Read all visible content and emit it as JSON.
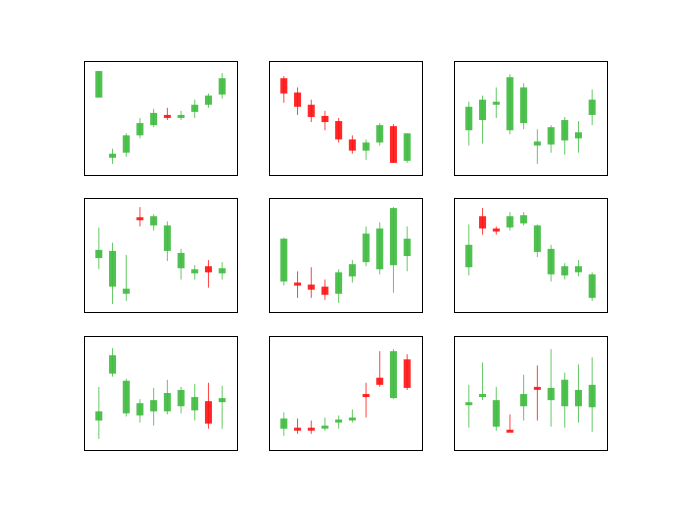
{
  "colors": {
    "up": "#3dba3d",
    "down": "#ff1010",
    "frame": "#000000"
  },
  "chart_data": [
    {
      "type": "candlestick",
      "ylim": [
        0,
        10
      ],
      "candles": [
        {
          "o": 7.0,
          "c": 9.6,
          "h": 9.6,
          "l": 7.0
        },
        {
          "o": 1.1,
          "c": 1.5,
          "h": 2.0,
          "l": 0.5
        },
        {
          "o": 1.6,
          "c": 3.3,
          "h": 3.5,
          "l": 1.2
        },
        {
          "o": 3.3,
          "c": 4.5,
          "h": 5.0,
          "l": 3.0
        },
        {
          "o": 4.3,
          "c": 5.5,
          "h": 5.9,
          "l": 4.1
        },
        {
          "o": 5.3,
          "c": 5.1,
          "h": 6.0,
          "l": 4.8
        },
        {
          "o": 5.1,
          "c": 5.3,
          "h": 5.7,
          "l": 4.8
        },
        {
          "o": 5.6,
          "c": 6.3,
          "h": 6.8,
          "l": 5.0
        },
        {
          "o": 6.3,
          "c": 7.2,
          "h": 7.4,
          "l": 6.0
        },
        {
          "o": 7.3,
          "c": 8.9,
          "h": 9.4,
          "l": 6.9
        }
      ]
    },
    {
      "type": "candlestick",
      "ylim": [
        0,
        10
      ],
      "candles": [
        {
          "o": 8.9,
          "c": 7.4,
          "h": 9.1,
          "l": 6.5
        },
        {
          "o": 7.5,
          "c": 6.1,
          "h": 8.0,
          "l": 5.3
        },
        {
          "o": 6.3,
          "c": 5.1,
          "h": 6.8,
          "l": 4.6
        },
        {
          "o": 5.2,
          "c": 4.6,
          "h": 5.7,
          "l": 3.8
        },
        {
          "o": 4.7,
          "c": 2.9,
          "h": 5.0,
          "l": 2.6
        },
        {
          "o": 2.9,
          "c": 1.8,
          "h": 3.3,
          "l": 1.5
        },
        {
          "o": 1.8,
          "c": 2.6,
          "h": 2.9,
          "l": 0.9
        },
        {
          "o": 2.6,
          "c": 4.3,
          "h": 4.5,
          "l": 2.3
        },
        {
          "o": 4.2,
          "c": 0.6,
          "h": 4.4,
          "l": 0.6
        },
        {
          "o": 0.8,
          "c": 3.5,
          "h": 3.5,
          "l": 0.6
        }
      ]
    },
    {
      "type": "candlestick",
      "ylim": [
        0,
        10
      ],
      "candles": [
        {
          "o": 3.8,
          "c": 6.1,
          "h": 6.6,
          "l": 2.3
        },
        {
          "o": 4.8,
          "c": 6.8,
          "h": 7.2,
          "l": 2.5
        },
        {
          "o": 6.3,
          "c": 6.6,
          "h": 8.0,
          "l": 5.0
        },
        {
          "o": 3.8,
          "c": 9.0,
          "h": 9.3,
          "l": 3.4
        },
        {
          "o": 4.5,
          "c": 8.0,
          "h": 8.4,
          "l": 3.9
        },
        {
          "o": 2.3,
          "c": 2.7,
          "h": 3.9,
          "l": 0.5
        },
        {
          "o": 2.4,
          "c": 4.1,
          "h": 4.3,
          "l": 1.6
        },
        {
          "o": 2.8,
          "c": 4.8,
          "h": 5.1,
          "l": 1.4
        },
        {
          "o": 3.0,
          "c": 3.6,
          "h": 4.7,
          "l": 1.6
        },
        {
          "o": 5.3,
          "c": 6.8,
          "h": 7.8,
          "l": 4.3
        }
      ]
    },
    {
      "type": "candlestick",
      "ylim": [
        0,
        10
      ],
      "candles": [
        {
          "o": 4.7,
          "c": 5.5,
          "h": 7.7,
          "l": 3.6
        },
        {
          "o": 1.9,
          "c": 5.4,
          "h": 6.2,
          "l": 0.2
        },
        {
          "o": 1.2,
          "c": 1.7,
          "h": 5.0,
          "l": 0.5
        },
        {
          "o": 8.7,
          "c": 8.5,
          "h": 9.7,
          "l": 7.8
        },
        {
          "o": 7.9,
          "c": 8.8,
          "h": 9.0,
          "l": 7.4
        },
        {
          "o": 5.4,
          "c": 7.9,
          "h": 8.3,
          "l": 4.4
        },
        {
          "o": 3.7,
          "c": 5.2,
          "h": 5.6,
          "l": 2.6
        },
        {
          "o": 3.2,
          "c": 3.6,
          "h": 4.0,
          "l": 2.6
        },
        {
          "o": 3.9,
          "c": 3.3,
          "h": 4.5,
          "l": 1.8
        },
        {
          "o": 3.2,
          "c": 3.7,
          "h": 4.3,
          "l": 2.6
        }
      ]
    },
    {
      "type": "candlestick",
      "ylim": [
        0,
        10
      ],
      "candles": [
        {
          "o": 2.4,
          "c": 6.6,
          "h": 6.7,
          "l": 2.0
        },
        {
          "o": 2.3,
          "c": 2.0,
          "h": 3.4,
          "l": 0.8
        },
        {
          "o": 2.1,
          "c": 1.6,
          "h": 3.8,
          "l": 0.8
        },
        {
          "o": 1.9,
          "c": 1.1,
          "h": 2.6,
          "l": 0.6
        },
        {
          "o": 1.2,
          "c": 3.3,
          "h": 3.6,
          "l": 0.3
        },
        {
          "o": 2.9,
          "c": 4.1,
          "h": 4.5,
          "l": 2.3
        },
        {
          "o": 4.3,
          "c": 7.1,
          "h": 7.8,
          "l": 3.9
        },
        {
          "o": 3.6,
          "c": 7.6,
          "h": 8.2,
          "l": 3.1
        },
        {
          "o": 4.0,
          "c": 9.6,
          "h": 9.7,
          "l": 1.3
        },
        {
          "o": 4.9,
          "c": 6.6,
          "h": 7.8,
          "l": 3.4
        }
      ]
    },
    {
      "type": "candlestick",
      "ylim": [
        0,
        10
      ],
      "candles": [
        {
          "o": 3.8,
          "c": 6.0,
          "h": 8.0,
          "l": 3.0
        },
        {
          "o": 8.8,
          "c": 7.6,
          "h": 9.6,
          "l": 7.0
        },
        {
          "o": 7.6,
          "c": 7.3,
          "h": 7.8,
          "l": 7.0
        },
        {
          "o": 7.7,
          "c": 8.8,
          "h": 9.2,
          "l": 7.4
        },
        {
          "o": 8.1,
          "c": 8.9,
          "h": 9.2,
          "l": 7.9
        },
        {
          "o": 5.3,
          "c": 7.9,
          "h": 8.0,
          "l": 4.8
        },
        {
          "o": 3.1,
          "c": 5.6,
          "h": 6.0,
          "l": 2.4
        },
        {
          "o": 3.0,
          "c": 3.9,
          "h": 4.2,
          "l": 2.6
        },
        {
          "o": 3.3,
          "c": 3.9,
          "h": 4.5,
          "l": 2.9
        },
        {
          "o": 0.8,
          "c": 3.1,
          "h": 3.3,
          "l": 0.5
        }
      ]
    },
    {
      "type": "candlestick",
      "ylim": [
        0,
        10
      ],
      "candles": [
        {
          "o": 2.3,
          "c": 3.2,
          "h": 5.6,
          "l": 0.5
        },
        {
          "o": 6.9,
          "c": 8.7,
          "h": 9.4,
          "l": 6.6
        },
        {
          "o": 3.0,
          "c": 6.2,
          "h": 6.4,
          "l": 2.7
        },
        {
          "o": 2.8,
          "c": 4.0,
          "h": 4.4,
          "l": 2.1
        },
        {
          "o": 3.2,
          "c": 4.3,
          "h": 5.5,
          "l": 1.8
        },
        {
          "o": 3.2,
          "c": 5.0,
          "h": 6.3,
          "l": 2.9
        },
        {
          "o": 3.7,
          "c": 5.3,
          "h": 5.6,
          "l": 3.0
        },
        {
          "o": 3.3,
          "c": 4.6,
          "h": 5.9,
          "l": 2.3
        },
        {
          "o": 4.2,
          "c": 2.0,
          "h": 6.0,
          "l": 1.5
        },
        {
          "o": 4.1,
          "c": 4.5,
          "h": 5.7,
          "l": 1.5
        }
      ]
    },
    {
      "type": "candlestick",
      "ylim": [
        0,
        10
      ],
      "candles": [
        {
          "o": 1.5,
          "c": 2.5,
          "h": 3.1,
          "l": 0.8
        },
        {
          "o": 1.6,
          "c": 1.5,
          "h": 2.5,
          "l": 1.0
        },
        {
          "o": 1.6,
          "c": 1.4,
          "h": 2.3,
          "l": 1.0
        },
        {
          "o": 1.6,
          "c": 1.8,
          "h": 2.6,
          "l": 1.3
        },
        {
          "o": 2.1,
          "c": 2.4,
          "h": 2.8,
          "l": 1.5
        },
        {
          "o": 2.4,
          "c": 2.6,
          "h": 3.4,
          "l": 2.1
        },
        {
          "o": 4.9,
          "c": 4.8,
          "h": 6.0,
          "l": 2.6
        },
        {
          "o": 6.5,
          "c": 5.8,
          "h": 9.1,
          "l": 5.6
        },
        {
          "o": 4.5,
          "c": 9.1,
          "h": 9.3,
          "l": 4.4
        },
        {
          "o": 8.3,
          "c": 5.5,
          "h": 8.8,
          "l": 5.3
        }
      ]
    },
    {
      "type": "candlestick",
      "ylim": [
        0,
        10
      ],
      "candles": [
        {
          "o": 3.8,
          "c": 4.1,
          "h": 5.8,
          "l": 1.6
        },
        {
          "o": 4.9,
          "c": 4.9,
          "h": 8.0,
          "l": 4.3
        },
        {
          "o": 1.7,
          "c": 4.3,
          "h": 5.6,
          "l": 1.3
        },
        {
          "o": 1.4,
          "c": 1.3,
          "h": 2.9,
          "l": 1.2
        },
        {
          "o": 3.7,
          "c": 4.9,
          "h": 6.8,
          "l": 2.3
        },
        {
          "o": 5.6,
          "c": 5.5,
          "h": 7.7,
          "l": 2.3
        },
        {
          "o": 4.3,
          "c": 5.5,
          "h": 9.3,
          "l": 1.7
        },
        {
          "o": 3.7,
          "c": 6.3,
          "h": 7.0,
          "l": 1.6
        },
        {
          "o": 3.7,
          "c": 5.3,
          "h": 7.8,
          "l": 2.1
        },
        {
          "o": 3.6,
          "c": 5.8,
          "h": 8.5,
          "l": 1.2
        }
      ]
    }
  ]
}
